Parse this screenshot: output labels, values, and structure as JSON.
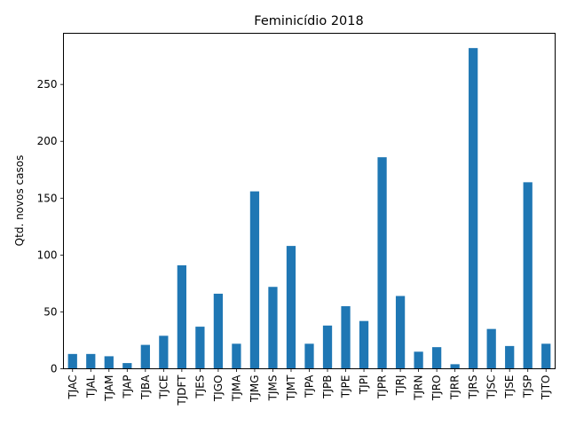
{
  "chart_data": {
    "type": "bar",
    "title": "Feminicídio 2018",
    "xlabel": "",
    "ylabel": "Qtd. novos casos",
    "categories": [
      "TJAC",
      "TJAL",
      "TJAM",
      "TJAP",
      "TJBA",
      "TJCE",
      "TJDFT",
      "TJES",
      "TJGO",
      "TJMA",
      "TJMG",
      "TJMS",
      "TJMT",
      "TJPA",
      "TJPB",
      "TJPE",
      "TJPI",
      "TJPR",
      "TJRJ",
      "TJRN",
      "TJRO",
      "TJRR",
      "TJRS",
      "TJSC",
      "TJSE",
      "TJSP",
      "TJTO"
    ],
    "values": [
      13,
      13,
      11,
      5,
      21,
      29,
      91,
      37,
      66,
      22,
      156,
      72,
      108,
      22,
      38,
      55,
      42,
      186,
      64,
      15,
      19,
      4,
      282,
      35,
      20,
      164,
      22
    ],
    "yticks": [
      0,
      50,
      100,
      150,
      200,
      250
    ],
    "ylim": [
      0,
      295
    ],
    "grid": false,
    "legend": "none",
    "bar_color": "#1f77b4"
  }
}
